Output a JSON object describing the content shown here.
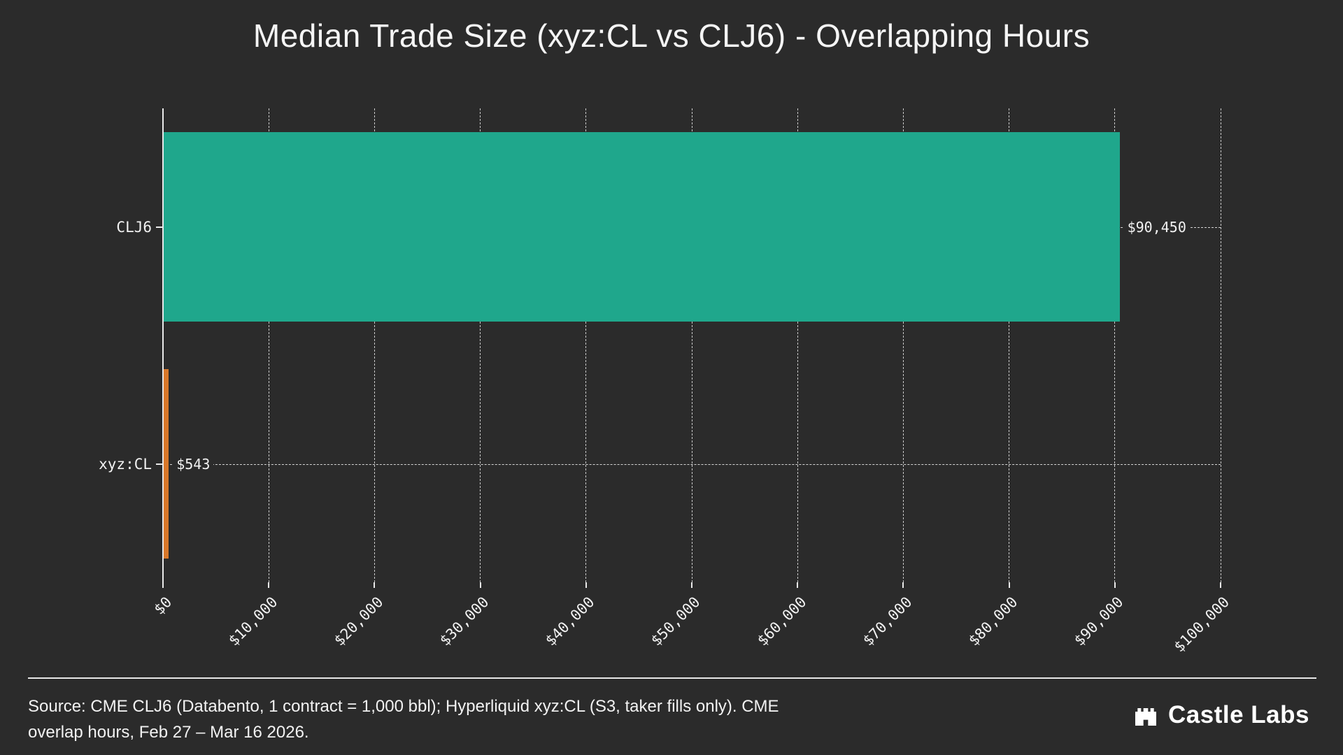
{
  "title": "Median Trade Size (xyz:CL vs CLJ6) - Overlapping Hours",
  "chart_data": {
    "type": "bar",
    "orientation": "horizontal",
    "title": "Median Trade Size (xyz:CL vs CLJ6) - Overlapping Hours",
    "categories": [
      "CLJ6",
      "xyz:CL"
    ],
    "values": [
      90450,
      543
    ],
    "value_labels": [
      "$90,450",
      "$543"
    ],
    "bar_colors": [
      "#1fa78c",
      "#d8782a"
    ],
    "xlim": [
      0,
      100000
    ],
    "x_ticks": [
      {
        "value": 0,
        "label": "$0"
      },
      {
        "value": 10000,
        "label": "$10,000"
      },
      {
        "value": 20000,
        "label": "$20,000"
      },
      {
        "value": 30000,
        "label": "$30,000"
      },
      {
        "value": 40000,
        "label": "$40,000"
      },
      {
        "value": 50000,
        "label": "$50,000"
      },
      {
        "value": 60000,
        "label": "$60,000"
      },
      {
        "value": 70000,
        "label": "$70,000"
      },
      {
        "value": 80000,
        "label": "$80,000"
      },
      {
        "value": 90000,
        "label": "$90,000"
      },
      {
        "value": 100000,
        "label": "$100,000"
      }
    ],
    "grid": "vertical-dashed",
    "legend": "none",
    "background": "#2b2b2b"
  },
  "footer": {
    "source_line1": "Source: CME CLJ6 (Databento, 1 contract = 1,000 bbl); Hyperliquid xyz:CL (S3, taker fills only). CME",
    "source_line2": "overlap hours, Feb 27 – Mar 16 2026.",
    "brand": "Castle Labs"
  }
}
